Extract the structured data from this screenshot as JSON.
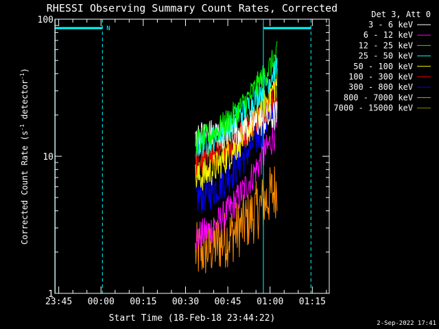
{
  "chart_data": {
    "type": "line",
    "title": "RHESSI Observing Summary Count Rates, Corrected",
    "xlabel": "Start Time (18-Feb-18 23:44:22)",
    "ylabel_main": "Corrected Count Rate (s",
    "ylabel_sup1": "-1",
    "ylabel_mid": " detector",
    "ylabel_sup2": "-1",
    "ylabel_end": ")",
    "yscale": "log",
    "ylim": [
      1,
      100
    ],
    "y_ticks": [
      "1",
      "10",
      "100"
    ],
    "xlim_minutes": [
      -1.37,
      96
    ],
    "x_ticks": [
      {
        "minute": 0,
        "label": "23:45"
      },
      {
        "minute": 15,
        "label": "00:00"
      },
      {
        "minute": 30,
        "label": "00:15"
      },
      {
        "minute": 45,
        "label": "00:30"
      },
      {
        "minute": 60,
        "label": "00:45"
      },
      {
        "minute": 75,
        "label": "01:00"
      },
      {
        "minute": 90,
        "label": "01:15"
      }
    ],
    "legend_title": "Det 3, Att 0",
    "legend_placement": "right",
    "footer": "2-Sep-2022 17:41",
    "night_marker": "N",
    "series": [
      {
        "name": "3 - 6 keV",
        "color": "#ffffff",
        "start": 14,
        "end": 20,
        "amp": 0.12
      },
      {
        "name": "6 - 12 keV",
        "color": "#ff00ff",
        "start": 2.6,
        "end": 16,
        "amp": 0.12
      },
      {
        "name": "12 - 25 keV",
        "color": "#00ff00",
        "start": 13,
        "end": 55,
        "amp": 0.1
      },
      {
        "name": "25 - 50 keV",
        "color": "#00ffff",
        "start": 12,
        "end": 45,
        "amp": 0.1
      },
      {
        "name": "50 - 100 keV",
        "color": "#ffff00",
        "start": 7,
        "end": 35,
        "amp": 0.12
      },
      {
        "name": "100 - 300 keV",
        "color": "#ff0000",
        "start": 9,
        "end": 30,
        "amp": 0.12
      },
      {
        "name": "300 - 800 keV",
        "color": "#0000ff",
        "start": 5,
        "end": 25,
        "amp": 0.14
      },
      {
        "name": "800 - 7000 keV",
        "color": "#ff8c00",
        "start": 2.0,
        "end": 6,
        "amp": 0.22
      },
      {
        "name": "7000 - 15000 keV",
        "color": "#8b8b00",
        "start": 9,
        "end": 28,
        "amp": 0.12
      }
    ],
    "data_minutes": [
      48.5,
      77.5
    ],
    "day_intervals_minutes": [
      [
        -1.37,
        15.5
      ],
      [
        72.5,
        89.5
      ]
    ],
    "dashed_markers_minutes": [
      15.5,
      89.5
    ],
    "solid_markers_minutes": [
      -1.37,
      72.5
    ]
  }
}
